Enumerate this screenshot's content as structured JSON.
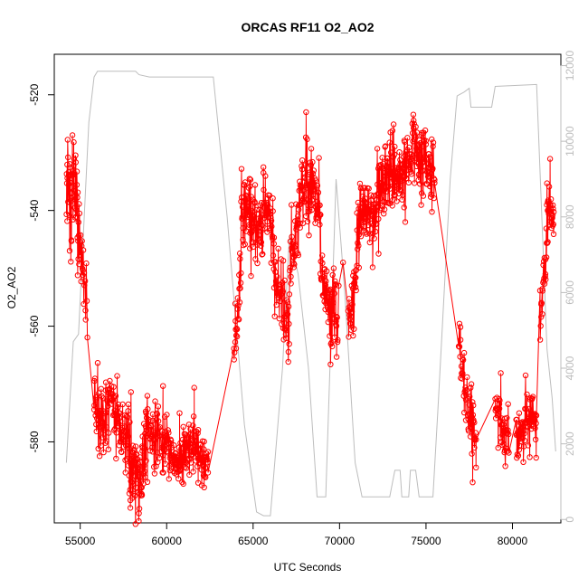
{
  "chart_data": {
    "type": "scatter",
    "title": "ORCAS RF11 O2_AO2",
    "xlabel": "UTC Seconds",
    "ylabel": "O2_AO2",
    "xlim": [
      53500,
      82800
    ],
    "ylim": [
      -594,
      -513
    ],
    "y2lim": [
      -90,
      12300
    ],
    "x_ticks": [
      55000,
      60000,
      65000,
      70000,
      75000,
      80000
    ],
    "y_ticks": [
      -520,
      -540,
      -560,
      -580
    ],
    "y2_ticks": [
      0,
      2000,
      4000,
      6000,
      8000,
      10000,
      12000
    ],
    "grid": false,
    "legend": "none",
    "series": [
      {
        "style": "points-and-line",
        "color": "#ff0000",
        "segments": [
          {
            "x0": 54200,
            "x1": 54950,
            "y0": -536,
            "y1": -537,
            "std": 4.5,
            "n": 55,
            "shape": [
              [
                0,
                0
              ],
              [
                0.12,
                3
              ],
              [
                0.35,
                -1
              ],
              [
                0.6,
                2
              ],
              [
                0.8,
                -3
              ],
              [
                1,
                -8
              ]
            ]
          },
          {
            "x0": 54950,
            "x1": 55400,
            "y0": -545,
            "y1": -558,
            "std": 3,
            "n": 20
          },
          {
            "x0": 55800,
            "x1": 57800,
            "y0": -573,
            "y1": -578,
            "std": 3,
            "n": 110,
            "shape": [
              [
                0,
                0
              ],
              [
                0.2,
                -3
              ],
              [
                0.5,
                2
              ],
              [
                0.8,
                -1
              ],
              [
                1,
                0
              ]
            ]
          },
          {
            "x0": 57800,
            "x1": 58800,
            "y0": -582,
            "y1": -584,
            "std": 3.2,
            "n": 70,
            "shape": [
              [
                0,
                0
              ],
              [
                0.4,
                -4
              ],
              [
                0.7,
                -2
              ],
              [
                1,
                2
              ]
            ]
          },
          {
            "x0": 58800,
            "x1": 59600,
            "y0": -578,
            "y1": -579,
            "std": 2.6,
            "n": 45
          },
          {
            "x0": 59700,
            "x1": 60600,
            "y0": -581,
            "y1": -583,
            "std": 2.4,
            "n": 55
          },
          {
            "x0": 60600,
            "x1": 61600,
            "y0": -584,
            "y1": -581,
            "std": 2.6,
            "n": 60
          },
          {
            "x0": 61600,
            "x1": 62400,
            "y0": -581,
            "y1": -584,
            "std": 2.2,
            "n": 45
          },
          {
            "x0": 63900,
            "x1": 64300,
            "y0": -565,
            "y1": -549,
            "std": 2.5,
            "n": 25
          },
          {
            "x0": 64300,
            "x1": 66200,
            "y0": -540,
            "y1": -544,
            "std": 3,
            "n": 110,
            "shape": [
              [
                0,
                0
              ],
              [
                0.3,
                2
              ],
              [
                0.5,
                -2
              ],
              [
                0.75,
                3
              ],
              [
                1,
                0
              ]
            ]
          },
          {
            "x0": 66200,
            "x1": 67100,
            "y0": -551,
            "y1": -560,
            "std": 4,
            "n": 50
          },
          {
            "x0": 67100,
            "x1": 67700,
            "y0": -550,
            "y1": -541,
            "std": 3,
            "n": 35
          },
          {
            "x0": 67700,
            "x1": 68900,
            "y0": -536,
            "y1": -540,
            "std": 3.5,
            "n": 75,
            "shape": [
              [
                0,
                0
              ],
              [
                0.5,
                3
              ],
              [
                1,
                -2
              ]
            ]
          },
          {
            "x0": 68900,
            "x1": 69900,
            "y0": -553,
            "y1": -560,
            "std": 3.8,
            "n": 60
          },
          {
            "x0": 70500,
            "x1": 71000,
            "y0": -561,
            "y1": -551,
            "std": 3,
            "n": 30
          },
          {
            "x0": 71000,
            "x1": 72300,
            "y0": -543,
            "y1": -539,
            "std": 3,
            "n": 80
          },
          {
            "x0": 72300,
            "x1": 73300,
            "y0": -535,
            "y1": -532,
            "std": 3,
            "n": 60
          },
          {
            "x0": 73300,
            "x1": 74200,
            "y0": -535,
            "y1": -532,
            "std": 3.2,
            "n": 55
          },
          {
            "x0": 74200,
            "x1": 75500,
            "y0": -528,
            "y1": -534,
            "std": 3.2,
            "n": 75
          },
          {
            "x0": 76900,
            "x1": 77400,
            "y0": -562,
            "y1": -575,
            "std": 3,
            "n": 25
          },
          {
            "x0": 77400,
            "x1": 77900,
            "y0": -576,
            "y1": -578,
            "std": 2.5,
            "n": 30
          },
          {
            "x0": 79000,
            "x1": 79800,
            "y0": -574,
            "y1": -580,
            "std": 2.5,
            "n": 45
          },
          {
            "x0": 80200,
            "x1": 81400,
            "y0": -578,
            "y1": -576,
            "std": 2.5,
            "n": 70
          },
          {
            "x0": 81600,
            "x1": 82000,
            "y0": -560,
            "y1": -546,
            "std": 2.5,
            "n": 25
          },
          {
            "x0": 82000,
            "x1": 82400,
            "y0": -540,
            "y1": -542,
            "std": 2.4,
            "n": 30
          }
        ],
        "bridge_points": [
          [
            69950,
            -553
          ],
          [
            70200,
            -549
          ],
          [
            77700,
            -587
          ],
          [
            77800,
            -581
          ]
        ]
      },
      {
        "style": "line",
        "axis": "right",
        "color": "#bdbdbd",
        "points": [
          [
            54200,
            1500
          ],
          [
            54600,
            4700
          ],
          [
            54900,
            4900
          ],
          [
            55500,
            10500
          ],
          [
            55800,
            11700
          ],
          [
            56000,
            11850
          ],
          [
            58200,
            11850
          ],
          [
            58400,
            11760
          ],
          [
            59000,
            11700
          ],
          [
            62700,
            11700
          ],
          [
            63500,
            8000
          ],
          [
            64500,
            2500
          ],
          [
            65200,
            200
          ],
          [
            65600,
            100
          ],
          [
            66000,
            100
          ],
          [
            66700,
            4000
          ],
          [
            67100,
            7500
          ],
          [
            67600,
            6500
          ],
          [
            68200,
            4000
          ],
          [
            68700,
            600
          ],
          [
            69200,
            600
          ],
          [
            69800,
            9000
          ],
          [
            70300,
            6000
          ],
          [
            70900,
            1500
          ],
          [
            71300,
            600
          ],
          [
            72000,
            600
          ],
          [
            72900,
            600
          ],
          [
            73200,
            1300
          ],
          [
            73500,
            1300
          ],
          [
            73600,
            600
          ],
          [
            74000,
            600
          ],
          [
            74100,
            1300
          ],
          [
            74400,
            1300
          ],
          [
            74600,
            600
          ],
          [
            75400,
            600
          ],
          [
            75700,
            3000
          ],
          [
            76400,
            9000
          ],
          [
            76800,
            11200
          ],
          [
            77200,
            11300
          ],
          [
            77500,
            11400
          ],
          [
            77600,
            10900
          ],
          [
            78800,
            10900
          ],
          [
            79000,
            11450
          ],
          [
            81400,
            11500
          ],
          [
            82000,
            4500
          ],
          [
            82300,
            3200
          ],
          [
            82500,
            1800
          ]
        ]
      }
    ]
  }
}
